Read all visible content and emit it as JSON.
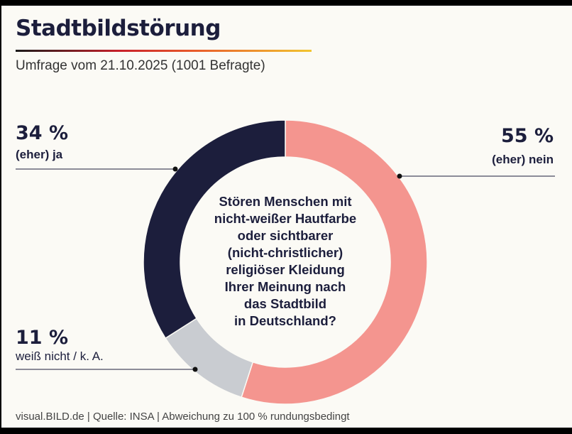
{
  "header": {
    "title": "Stadtbildstörung",
    "subtitle": "Umfrage vom 21.10.2025 (1001 Befragte)"
  },
  "footer": "visual.BILD.de | Quelle: INSA | Abweichung zu 100 % rundungsbedingt",
  "chart_data": {
    "type": "pie",
    "donut": true,
    "question": "Stören Menschen mit nicht-weißer Hautfarbe oder sichtbarer (nicht-christlicher) religiöser Kleidung Ihrer Meinung nach das Stadtbild in Deutschland?",
    "question_lines": [
      "Stören Menschen mit",
      "nicht-weißer Hautfarbe",
      "oder sichtbarer",
      "(nicht-christlicher)",
      "religiöser Kleidung",
      "Ihrer Meinung nach",
      "das Stadtbild",
      "in Deutschland?"
    ],
    "slices": [
      {
        "label": "(eher) nein",
        "value": 55,
        "value_label": "55 %",
        "color": "#f4958f"
      },
      {
        "label": "weiß nicht / k. A.",
        "value": 11,
        "value_label": "11 %",
        "color": "#c9ccd1"
      },
      {
        "label": "(eher) ja",
        "value": 34,
        "value_label": "34 %",
        "color": "#1c1e3c"
      }
    ]
  }
}
